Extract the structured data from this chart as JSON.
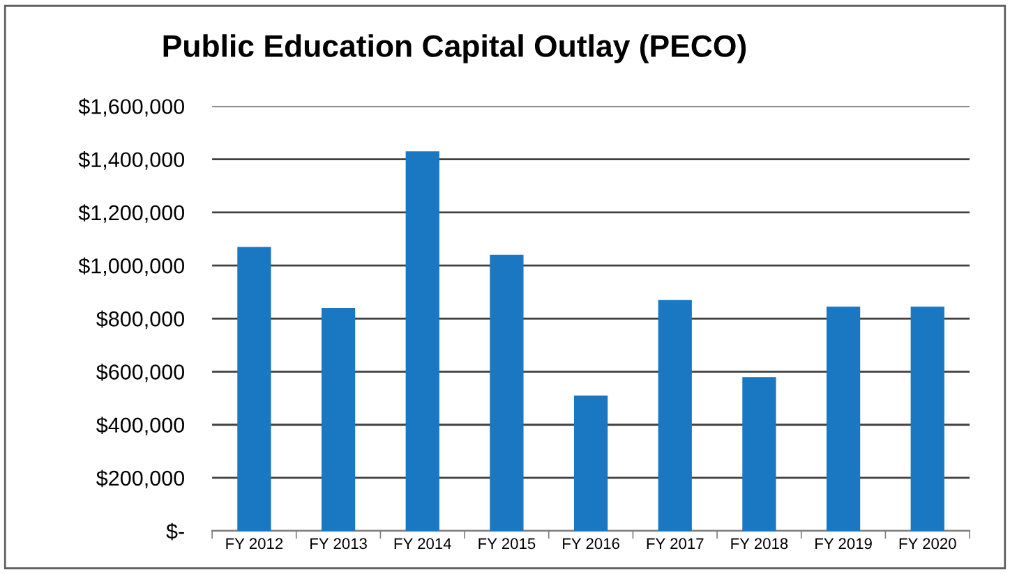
{
  "chart_data": {
    "type": "bar",
    "title": "Public Education Capital Outlay (PECO)",
    "categories": [
      "FY 2012",
      "FY 2013",
      "FY 2014",
      "FY 2015",
      "FY 2016",
      "FY 2017",
      "FY 2018",
      "FY 2019",
      "FY 2020"
    ],
    "values": [
      1070000,
      840000,
      1430000,
      1040000,
      510000,
      870000,
      580000,
      845000,
      845000
    ],
    "color": "#1a78c2",
    "ylim": [
      0,
      1600000
    ],
    "yticks": [
      {
        "value": 0,
        "label": "$-"
      },
      {
        "value": 200000,
        "label": "$200,000"
      },
      {
        "value": 400000,
        "label": "$400,000"
      },
      {
        "value": 600000,
        "label": "$600,000"
      },
      {
        "value": 800000,
        "label": "$800,000"
      },
      {
        "value": 1000000,
        "label": "$1,000,000"
      },
      {
        "value": 1200000,
        "label": "$1,200,000"
      },
      {
        "value": 1400000,
        "label": "$1,400,000"
      },
      {
        "value": 1600000,
        "label": "$1,600,000"
      }
    ],
    "grid": "y"
  }
}
